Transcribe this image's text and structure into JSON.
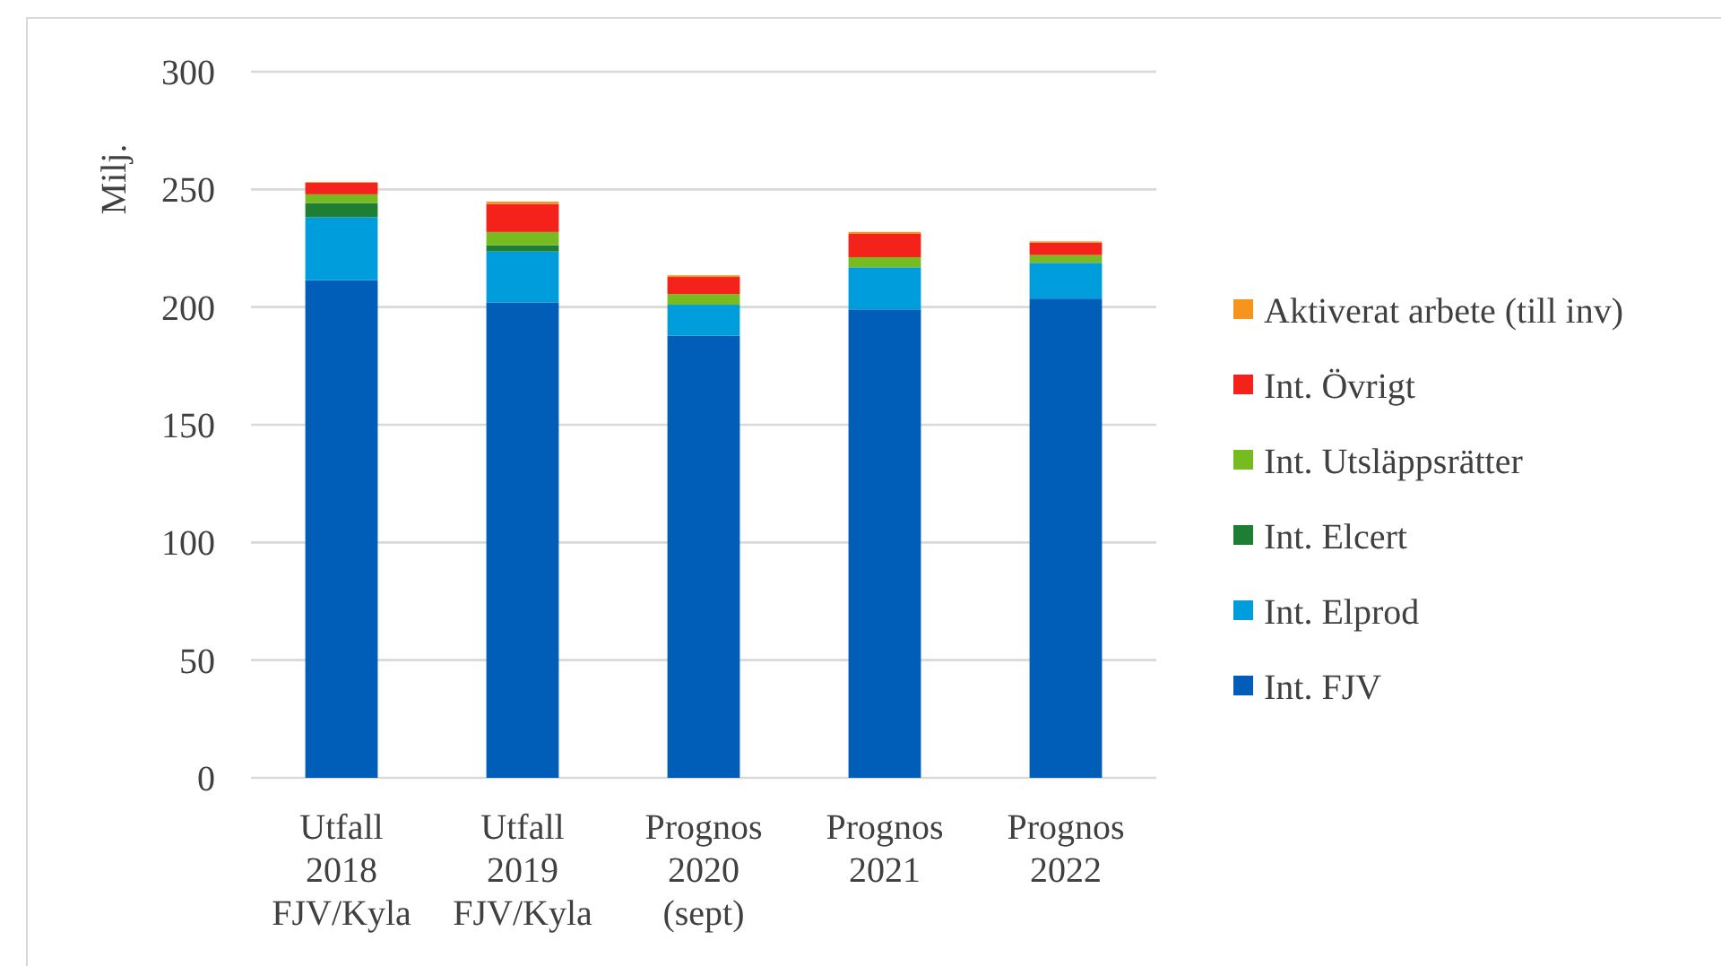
{
  "chart_data": {
    "type": "bar",
    "stacked": true,
    "ylabel": "Milj.",
    "categories": [
      "Utfall\n2018\nFJV/Kyla",
      "Utfall\n2019\nFJV/Kyla",
      "Prognos\n2020\n(sept)",
      "Prognos\n2021",
      "Prognos\n2022"
    ],
    "series": [
      {
        "name": "Int. FJV",
        "color": "#005eb8",
        "values": [
          211.4,
          202,
          187.8,
          199,
          203.6
        ]
      },
      {
        "name": "Int. Elprod",
        "color": "#009ddc",
        "values": [
          26.8,
          21.6,
          13.2,
          17.9,
          15.2
        ]
      },
      {
        "name": "Int. Elcert",
        "color": "#1e7e34",
        "values": [
          6,
          2.7,
          0,
          0,
          0
        ]
      },
      {
        "name": "Int. Utsläppsrätter",
        "color": "#76bc21",
        "values": [
          3.7,
          5.6,
          4.5,
          4.3,
          3.3
        ]
      },
      {
        "name": "Int. Övrigt",
        "color": "#f5221b",
        "values": [
          4.9,
          11.9,
          7.3,
          9.9,
          5.3
        ]
      },
      {
        "name": "Aktiverat arbete (till inv)",
        "color": "#f7941d",
        "values": [
          0.3,
          1,
          0.7,
          0.8,
          0.5
        ]
      }
    ],
    "ylim": [
      0,
      300
    ],
    "yticks": [
      0,
      50,
      100,
      150,
      200,
      250,
      300
    ],
    "grid": "y",
    "legend": "right"
  }
}
